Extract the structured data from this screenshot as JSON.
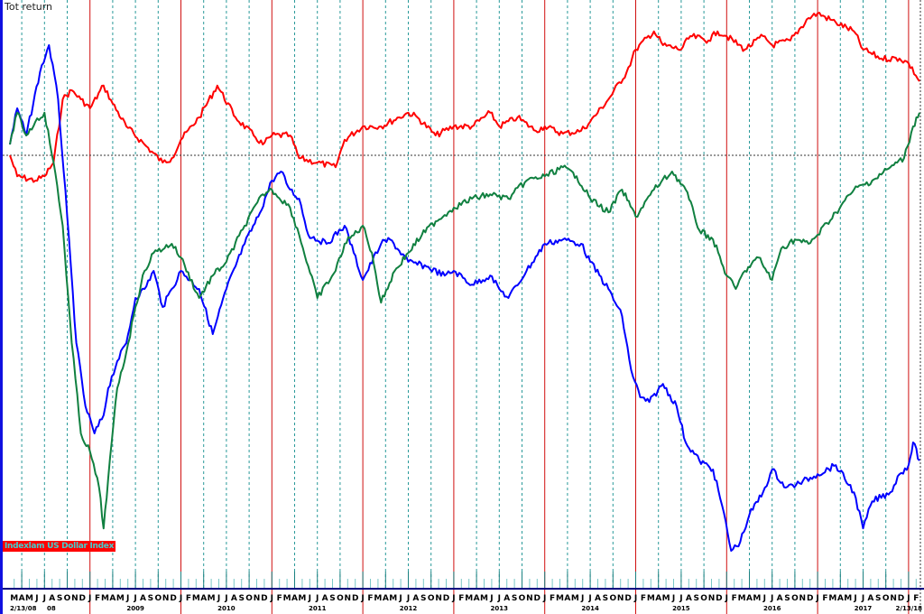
{
  "chart_data": {
    "type": "line",
    "title": "Tot return",
    "xlabel": "",
    "ylabel": "",
    "start_label": "2/13/08",
    "end_label": "2/13/18",
    "first_year_label": "08",
    "year_labels": [
      "2009",
      "2010",
      "2011",
      "2012",
      "2013",
      "2014",
      "2015",
      "2016",
      "2017"
    ],
    "month_initials": [
      "J",
      "F",
      "M",
      "A",
      "M",
      "J",
      "J",
      "A",
      "S",
      "O",
      "N",
      "D"
    ],
    "xlim": [
      2008.12,
      2018.12
    ],
    "ylim": [
      -115,
      43
    ],
    "baseline": 0,
    "grid": {
      "year_lines": true,
      "quarter_lines": true,
      "baseline_dotted": true
    },
    "legend_placement": "bottom-left",
    "legend_text": "Indexlam US Dollar Index",
    "colors": {
      "year_line": "#d01010",
      "quarter_line": "#2a9a9a",
      "axis": "#000080",
      "legend_bg": "#ff0000",
      "legend_text": "#40d0d0"
    },
    "series": [
      {
        "color": "#ff0000",
        "x": [
          2008.12,
          2008.2,
          2008.4,
          2008.5,
          2008.6,
          2008.7,
          2008.8,
          2008.9,
          2009.0,
          2009.15,
          2009.25,
          2009.4,
          2009.6,
          2009.8,
          2009.9,
          2010.0,
          2010.2,
          2010.4,
          2010.6,
          2010.8,
          2010.9,
          2011.0,
          2011.2,
          2011.3,
          2011.5,
          2011.7,
          2011.8,
          2012.0,
          2012.2,
          2012.4,
          2012.5,
          2012.6,
          2012.8,
          2013.0,
          2013.2,
          2013.4,
          2013.5,
          2013.7,
          2013.9,
          2014.0,
          2014.2,
          2014.4,
          2014.5,
          2014.7,
          2014.9,
          2015.0,
          2015.2,
          2015.3,
          2015.5,
          2015.6,
          2015.8,
          2015.9,
          2016.0,
          2016.2,
          2016.4,
          2016.5,
          2016.7,
          2016.9,
          2017.0,
          2017.2,
          2017.4,
          2017.5,
          2017.7,
          2017.9,
          2018.0,
          2018.12
        ],
        "y": [
          0,
          -5.8,
          -7,
          -5.8,
          -2,
          15.5,
          18,
          15.5,
          13,
          19.3,
          14.3,
          8,
          3,
          -2,
          -0.8,
          4.3,
          10.5,
          19.3,
          10.5,
          5.5,
          3,
          5.5,
          5.5,
          -0.8,
          -2,
          -3.3,
          4.3,
          8,
          8,
          10.5,
          11.8,
          10.5,
          5.5,
          8,
          8,
          11.8,
          8,
          10.5,
          6.8,
          8,
          6,
          6.8,
          9.3,
          15.5,
          23,
          29.3,
          34.3,
          30.5,
          29.3,
          33,
          31.8,
          34.3,
          33,
          29.3,
          33,
          30.5,
          31.8,
          38,
          39.3,
          36.8,
          34.3,
          29.3,
          26.8,
          26.8,
          25.5,
          20.5
        ]
      },
      {
        "color": "#0000ff",
        "x": [
          2008.12,
          2008.2,
          2008.3,
          2008.45,
          2008.55,
          2008.65,
          2008.75,
          2008.85,
          2008.95,
          2009.05,
          2009.15,
          2009.2,
          2009.3,
          2009.4,
          2009.5,
          2009.6,
          2009.7,
          2009.8,
          2009.9,
          2010.0,
          2010.2,
          2010.35,
          2010.5,
          2010.7,
          2010.85,
          2011.0,
          2011.1,
          2011.2,
          2011.3,
          2011.4,
          2011.6,
          2011.8,
          2011.9,
          2012.0,
          2012.2,
          2012.3,
          2012.5,
          2012.7,
          2012.9,
          2013.0,
          2013.2,
          2013.4,
          2013.5,
          2013.6,
          2013.8,
          2014.0,
          2014.2,
          2014.4,
          2014.5,
          2014.7,
          2014.85,
          2014.95,
          2015.05,
          2015.15,
          2015.3,
          2015.45,
          2015.55,
          2015.7,
          2015.85,
          2015.95,
          2016.05,
          2016.15,
          2016.25,
          2016.4,
          2016.5,
          2016.65,
          2016.8,
          2017.0,
          2017.2,
          2017.4,
          2017.5,
          2017.6,
          2017.8,
          2017.9,
          2018.0,
          2018.05,
          2018.12
        ],
        "y": [
          3,
          13,
          5.5,
          23,
          30.5,
          15.5,
          -17,
          -52,
          -69.5,
          -77,
          -72,
          -64.5,
          -57,
          -52,
          -39.5,
          -37,
          -32,
          -42,
          -37,
          -32,
          -37,
          -49.5,
          -37,
          -24.5,
          -17,
          -7,
          -4.5,
          -9.5,
          -12,
          -22,
          -24.5,
          -19.5,
          -27,
          -34.5,
          -24.5,
          -23.3,
          -29.5,
          -30.8,
          -33.3,
          -32,
          -35.8,
          -33.3,
          -37,
          -39.5,
          -32,
          -24.5,
          -23.3,
          -24.5,
          -29.5,
          -37,
          -44.5,
          -59.5,
          -67,
          -68.3,
          -63.3,
          -69.5,
          -79.5,
          -84.5,
          -87,
          -97,
          -109.5,
          -107,
          -99.5,
          -93.3,
          -87,
          -92,
          -90.8,
          -88.3,
          -85.8,
          -93.3,
          -103.3,
          -95.8,
          -93.3,
          -88.3,
          -85.8,
          -79.5,
          -84.5
        ]
      },
      {
        "color": "#108040",
        "x": [
          2008.12,
          2008.2,
          2008.3,
          2008.4,
          2008.5,
          2008.6,
          2008.7,
          2008.8,
          2008.9,
          2009.0,
          2009.1,
          2009.15,
          2009.2,
          2009.3,
          2009.4,
          2009.5,
          2009.6,
          2009.7,
          2009.9,
          2010.0,
          2010.2,
          2010.35,
          2010.5,
          2010.7,
          2010.9,
          2011.0,
          2011.2,
          2011.3,
          2011.5,
          2011.7,
          2011.8,
          2012.0,
          2012.1,
          2012.2,
          2012.35,
          2012.5,
          2012.65,
          2012.8,
          2013.0,
          2013.2,
          2013.4,
          2013.6,
          2013.8,
          2014.0,
          2014.2,
          2014.35,
          2014.5,
          2014.7,
          2014.85,
          2015.0,
          2015.2,
          2015.4,
          2015.55,
          2015.7,
          2015.85,
          2016.0,
          2016.1,
          2016.2,
          2016.35,
          2016.5,
          2016.6,
          2016.75,
          2016.9,
          2017.0,
          2017.2,
          2017.4,
          2017.6,
          2017.8,
          2017.95,
          2018.05,
          2018.12
        ],
        "y": [
          3,
          11.8,
          5.5,
          9.3,
          11.8,
          -2,
          -19.5,
          -52,
          -77,
          -82,
          -92,
          -103.3,
          -89.5,
          -64.5,
          -54.5,
          -42,
          -32,
          -27,
          -24.5,
          -28.3,
          -39.5,
          -33.3,
          -29.5,
          -19.5,
          -10.8,
          -9.5,
          -14.5,
          -22,
          -39.5,
          -32,
          -24.5,
          -19.5,
          -27,
          -40.8,
          -32,
          -27,
          -22,
          -18.3,
          -14.5,
          -12,
          -10.8,
          -12,
          -7,
          -5.8,
          -3.3,
          -5.8,
          -12,
          -15.8,
          -9.5,
          -17,
          -9.5,
          -4.5,
          -9.5,
          -20.8,
          -23.3,
          -33.3,
          -37,
          -32,
          -28.3,
          -34.5,
          -25.8,
          -23.3,
          -24.5,
          -22,
          -15.8,
          -9.5,
          -7,
          -3.3,
          -0.8,
          8,
          11.8
        ]
      }
    ]
  }
}
